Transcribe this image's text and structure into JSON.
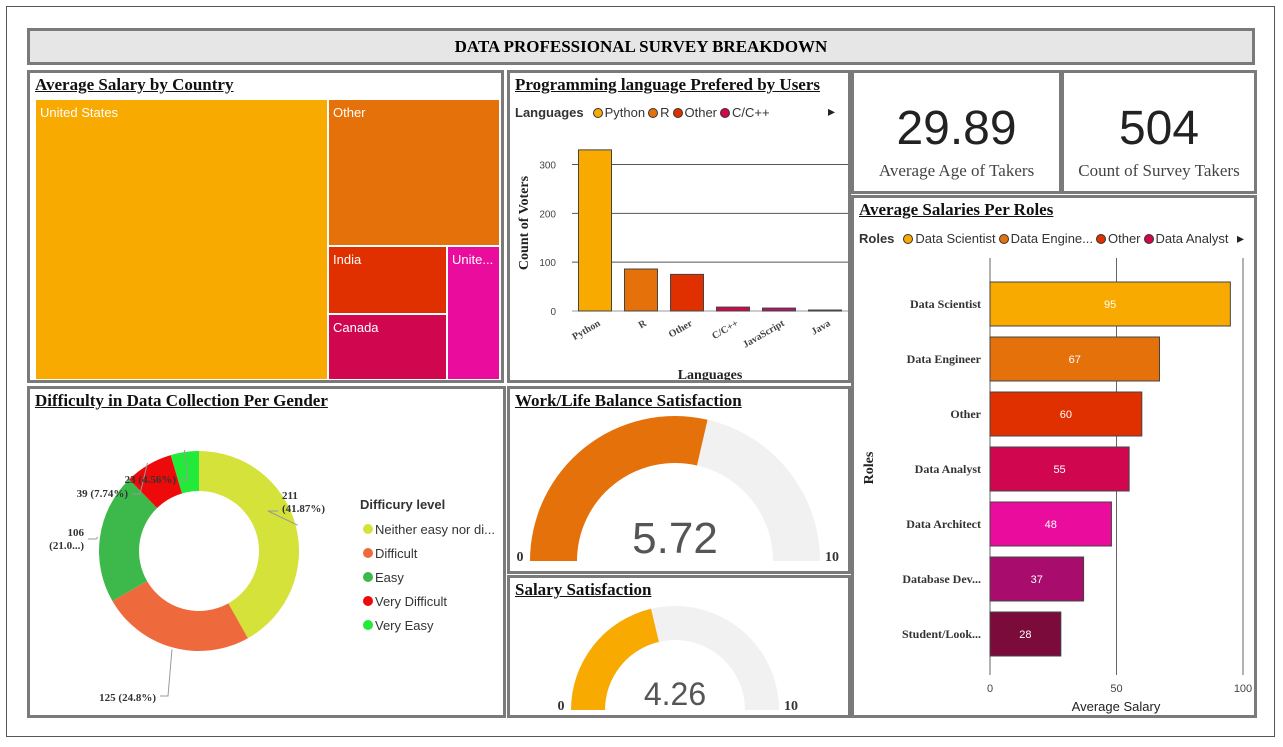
{
  "title": "DATA PROFESSIONAL SURVEY BREAKDOWN",
  "salary_by_country": {
    "title": "Average Salary by Country",
    "tiles": [
      {
        "label": "United States",
        "color": "#f9aa00"
      },
      {
        "label": "Other",
        "color": "#e5710a"
      },
      {
        "label": "India",
        "color": "#e03000"
      },
      {
        "label": "Unite...",
        "color": "#ea0c9c"
      },
      {
        "label": "Canada",
        "color": "#d0064f"
      }
    ]
  },
  "languages": {
    "title": "Programming language Prefered by Users",
    "legend_title": "Languages",
    "legend": [
      {
        "name": "Python",
        "color": "#f9aa00"
      },
      {
        "name": "R",
        "color": "#e5710a"
      },
      {
        "name": "Other",
        "color": "#e03000"
      },
      {
        "name": "C/C++",
        "color": "#d0064f"
      }
    ],
    "more_icon": "▸"
  },
  "kpis": [
    {
      "value": "29.89",
      "label": "Average Age of Takers"
    },
    {
      "value": "504",
      "label": "Count of Survey Takers"
    }
  ],
  "roles": {
    "title": "Average Salaries Per Roles",
    "legend_title": "Roles",
    "legend": [
      {
        "name": "Data Scientist",
        "color": "#f9aa00"
      },
      {
        "name": "Data Engine...",
        "color": "#e5710a"
      },
      {
        "name": "Other",
        "color": "#e03000"
      },
      {
        "name": "Data Analyst",
        "color": "#d0064f"
      }
    ],
    "more_icon": "▸"
  },
  "difficulty": {
    "title": "Difficulty in Data Collection Per Gender",
    "legend_title": "Difficury level",
    "legend": [
      {
        "name": "Neither easy nor di...",
        "color": "#d4e23a"
      },
      {
        "name": "Difficult",
        "color": "#ee6a3c"
      },
      {
        "name": "Easy",
        "color": "#3cb94a"
      },
      {
        "name": "Very Difficult",
        "color": "#ee0a0a"
      },
      {
        "name": "Very Easy",
        "color": "#22ea38"
      }
    ]
  },
  "worklife": {
    "title": "Work/Life Balance Satisfaction",
    "value": "5.72",
    "min": "0",
    "max": "10",
    "fraction": 0.572,
    "color": "#e5710a"
  },
  "salary_sat": {
    "title": "Salary Satisfaction",
    "value": "4.26",
    "min": "0",
    "max": "10",
    "fraction": 0.426,
    "color": "#f9aa00"
  },
  "chart_data": [
    {
      "type": "treemap",
      "title": "Average Salary by Country",
      "categories": [
        "United States",
        "Other",
        "India",
        "Unite...",
        "Canada"
      ]
    },
    {
      "type": "bar",
      "title": "Programming language Prefered by Users",
      "xlabel": "Languages",
      "ylabel": "Count of Voters",
      "categories": [
        "Python",
        "R",
        "Other",
        "C/C++",
        "JavaScript",
        "Java"
      ],
      "values": [
        330,
        86,
        75,
        8,
        6,
        2
      ],
      "colors": [
        "#f9aa00",
        "#e5710a",
        "#e03000",
        "#d0064f",
        "#b5126d",
        "#8a0f4e"
      ],
      "yticks": [
        0,
        100,
        200,
        300
      ],
      "ylim": [
        0,
        340
      ]
    },
    {
      "type": "bar",
      "orientation": "horizontal",
      "title": "Average Salaries Per Roles",
      "xlabel": "Average Salary",
      "ylabel": "Roles",
      "categories": [
        "Data Scientist",
        "Data Engineer",
        "Other",
        "Data Analyst",
        "Data Architect",
        "Database Dev...",
        "Student/Look..."
      ],
      "values": [
        95,
        67,
        60,
        55,
        48,
        37,
        28
      ],
      "colors": [
        "#f9aa00",
        "#e5710a",
        "#e03000",
        "#d0064f",
        "#ea0c9c",
        "#a80d6e",
        "#7a0b3a"
      ],
      "xticks": [
        0,
        50,
        100
      ],
      "xlim": [
        0,
        100
      ]
    },
    {
      "type": "pie",
      "donut": true,
      "title": "Difficulty in Data Collection Per Gender",
      "categories": [
        "Neither easy nor di...",
        "Difficult",
        "Easy",
        "Very Difficult",
        "Very Easy"
      ],
      "values": [
        211,
        125,
        106,
        39,
        23
      ],
      "colors": [
        "#d4e23a",
        "#ee6a3c",
        "#3cb94a",
        "#ee0a0a",
        "#22ea38"
      ],
      "labels": [
        [
          "211",
          "(41.87%)"
        ],
        [
          "125 (24.8%)"
        ],
        [
          "106",
          "(21.0...)"
        ],
        [
          "39 (7.74%)"
        ],
        [
          "23 (4.56%)"
        ]
      ]
    }
  ]
}
